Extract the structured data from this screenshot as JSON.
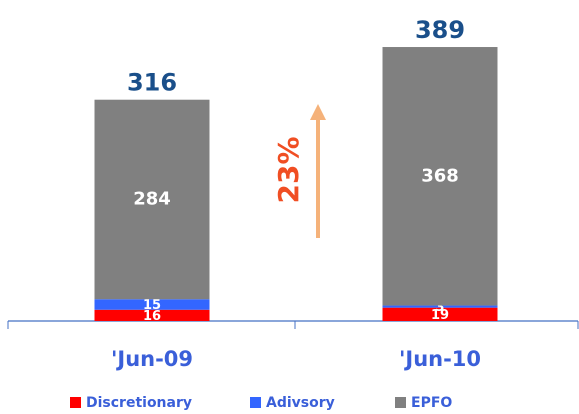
{
  "chart_data": {
    "type": "stacked_bar",
    "categories": [
      "'Jun-09",
      "'Jun-10"
    ],
    "series": [
      {
        "name": "Discretionary",
        "color": "#ff0000",
        "values": [
          16,
          19
        ]
      },
      {
        "name": "Adivsory",
        "color": "#3366ff",
        "values": [
          15,
          3
        ]
      },
      {
        "name": "EPFO",
        "color": "#808080",
        "values": [
          284,
          368
        ]
      }
    ],
    "totals": [
      316,
      389
    ],
    "ylim": [
      0,
      400
    ],
    "annotation": "23%",
    "legend": "bottom"
  }
}
